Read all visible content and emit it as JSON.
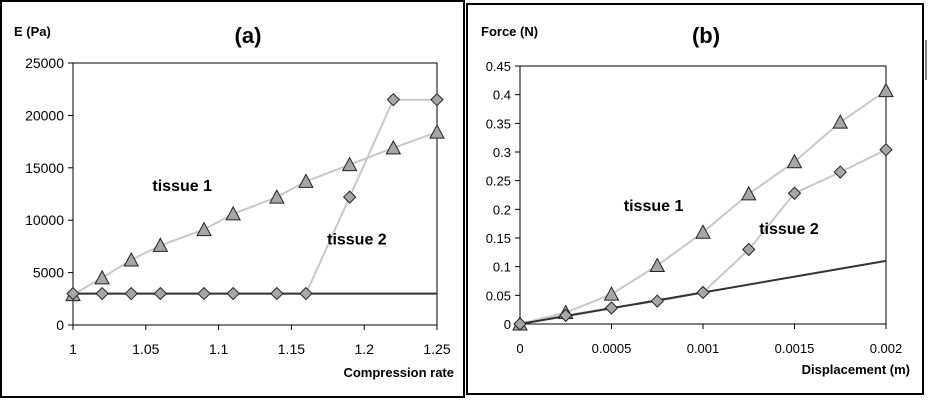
{
  "chart_data": [
    {
      "type": "line",
      "title": "(a)",
      "ylabel": "E (Pa)",
      "xlabel": "Compression rate",
      "xlim": [
        1,
        1.25
      ],
      "ylim": [
        0,
        25000
      ],
      "x_ticks": [
        1,
        1.05,
        1.1,
        1.15,
        1.2,
        1.25
      ],
      "x_tick_labels": [
        "1",
        "1.05",
        "1.1",
        "1.15",
        "1.2",
        "1.25"
      ],
      "y_ticks": [
        0,
        5000,
        10000,
        15000,
        20000,
        25000
      ],
      "y_tick_labels": [
        "0",
        "5000",
        "10000",
        "15000",
        "20000",
        "25000"
      ],
      "grid": false,
      "legend": "none",
      "series": [
        {
          "name": "tissue 1",
          "marker": "triangle",
          "line_color": "#c8c8c8",
          "x": [
            1,
            1.02,
            1.04,
            1.06,
            1.09,
            1.11,
            1.14,
            1.16,
            1.19,
            1.22,
            1.25
          ],
          "y": [
            2900,
            4500,
            6200,
            7600,
            9100,
            10600,
            12200,
            13700,
            15300,
            16900,
            18400
          ]
        },
        {
          "name": "tissue 2",
          "marker": "diamond",
          "line_color": "#c8c8c8",
          "x": [
            1,
            1.02,
            1.04,
            1.06,
            1.09,
            1.11,
            1.14,
            1.16,
            1.19,
            1.22,
            1.25
          ],
          "y": [
            3000,
            3000,
            3000,
            3000,
            3000,
            3000,
            3000,
            3000,
            12200,
            21500,
            21500
          ]
        },
        {
          "marker": "none",
          "line_color": "#333333",
          "x": [
            1,
            1.25
          ],
          "y": [
            3000,
            3000
          ]
        }
      ],
      "annotations": [
        {
          "text": "tissue 1",
          "x": 1.075,
          "y": 12800
        },
        {
          "text": "tissue 2",
          "x": 1.195,
          "y": 7700
        }
      ]
    },
    {
      "type": "line",
      "title": "(b)",
      "ylabel": "Force (N)",
      "xlabel": "Displacement (m)",
      "xlim": [
        0,
        0.002
      ],
      "ylim": [
        0,
        0.45
      ],
      "x_ticks": [
        0,
        0.0005,
        0.001,
        0.0015,
        0.002
      ],
      "x_tick_labels": [
        "0",
        "0.0005",
        "0.001",
        "0.0015",
        "0.002"
      ],
      "y_ticks": [
        0,
        0.05,
        0.1,
        0.15,
        0.2,
        0.25,
        0.3,
        0.35,
        0.4,
        0.45
      ],
      "y_tick_labels": [
        "0",
        "0.05",
        "0.1",
        "0.15",
        "0.2",
        "0.25",
        "0.3",
        "0.35",
        "0.4",
        "0.45"
      ],
      "grid": false,
      "legend": "none",
      "series": [
        {
          "name": "tissue 1",
          "marker": "triangle",
          "line_color": "#c8c8c8",
          "x": [
            0,
            0.00025,
            0.0005,
            0.00075,
            0.001,
            0.00125,
            0.0015,
            0.00175,
            0.002
          ],
          "y": [
            0,
            0.02,
            0.052,
            0.102,
            0.16,
            0.227,
            0.283,
            0.352,
            0.407
          ]
        },
        {
          "name": "tissue 2",
          "marker": "diamond",
          "line_color": "#c8c8c8",
          "x": [
            0,
            0.00025,
            0.0005,
            0.00075,
            0.001,
            0.00125,
            0.0015,
            0.00175,
            0.002
          ],
          "y": [
            0,
            0.015,
            0.028,
            0.04,
            0.055,
            0.13,
            0.228,
            0.265,
            0.304
          ]
        },
        {
          "marker": "none",
          "line_color": "#333333",
          "x": [
            0,
            0.002
          ],
          "y": [
            0,
            0.11
          ]
        }
      ],
      "annotations": [
        {
          "text": "tissue 1",
          "x": 0.00073,
          "y": 0.197
        },
        {
          "text": "tissue 2",
          "x": 0.00147,
          "y": 0.157
        }
      ]
    }
  ]
}
